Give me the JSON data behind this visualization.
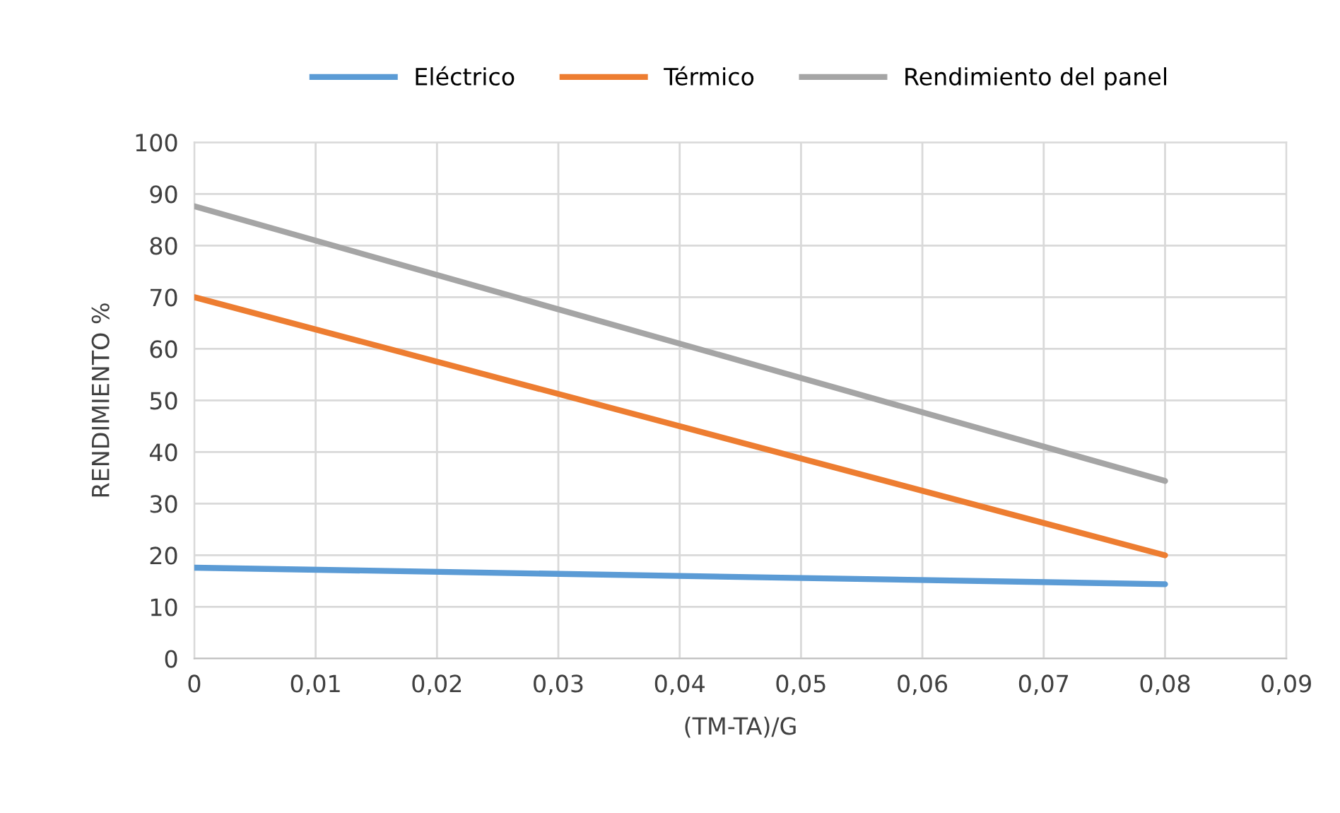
{
  "chart_data": {
    "type": "line",
    "xlabel": "(TM-TA)/G",
    "ylabel": "RENDIMIENTO %",
    "x": [
      0,
      0.08
    ],
    "series": [
      {
        "name": "Eléctrico",
        "color": "#5b9bd5",
        "values": [
          17.6,
          14.4
        ]
      },
      {
        "name": "Térmico",
        "color": "#ed7d31",
        "values": [
          70,
          20
        ]
      },
      {
        "name": "Rendimiento del panel",
        "color": "#a5a5a5",
        "values": [
          87.6,
          34.4
        ]
      }
    ],
    "xlim": [
      0,
      0.09
    ],
    "xticks": [
      0,
      {
        "value": 0.01,
        "label": "0,01"
      },
      {
        "value": 0.02,
        "label": "0,02"
      },
      {
        "value": 0.03,
        "label": "0,03"
      },
      {
        "value": 0.04,
        "label": "0,04"
      },
      {
        "value": 0.05,
        "label": "0,05"
      },
      {
        "value": 0.06,
        "label": "0,06"
      },
      {
        "value": 0.07,
        "label": "0,07"
      },
      {
        "value": 0.08,
        "label": "0,08"
      },
      {
        "value": 0.09,
        "label": "0,09"
      }
    ],
    "ylim": [
      0,
      100
    ],
    "yticks": [
      0,
      10,
      20,
      30,
      40,
      50,
      60,
      70,
      80,
      90,
      100
    ],
    "grid": true,
    "legend": "top",
    "marker": "none",
    "line_style": "solid"
  }
}
